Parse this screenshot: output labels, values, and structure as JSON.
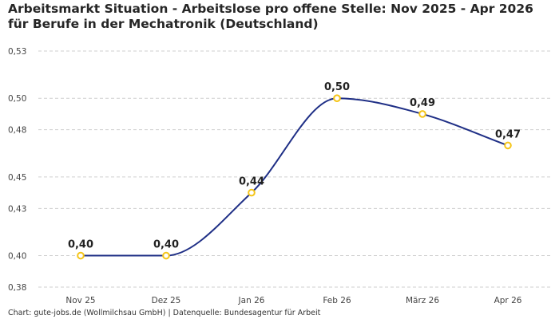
{
  "chart_data": {
    "type": "line",
    "title": "Arbeitsmarkt Situation - Arbeitslose pro offene Stelle: Nov 2025 - Apr 2026 für Berufe in der Mechatronik (Deutschland)",
    "categories": [
      "Nov 25",
      "Dez 25",
      "Jan 26",
      "Feb 26",
      "März 26",
      "Apr 26"
    ],
    "values": [
      0.4,
      0.4,
      0.44,
      0.5,
      0.49,
      0.47
    ],
    "data_labels": [
      "0,40",
      "0,40",
      "0,44",
      "0,50",
      "0,49",
      "0,47"
    ],
    "y_ticks": [
      0.38,
      0.4,
      0.43,
      0.45,
      0.48,
      0.5,
      0.53
    ],
    "y_tick_labels": [
      "0,38",
      "0,40",
      "0,43",
      "0,45",
      "0,48",
      "0,50",
      "0,53"
    ],
    "ylim": [
      0.38,
      0.53
    ],
    "grid": true,
    "smooth": true,
    "colors": {
      "line": "#1f2f86",
      "marker": "#f5c518",
      "grid": "#cfcfcf"
    }
  },
  "footer": "Chart: gute-jobs.de (Wollmilchsau GmbH) | Datenquelle: Bundesagentur für Arbeit"
}
